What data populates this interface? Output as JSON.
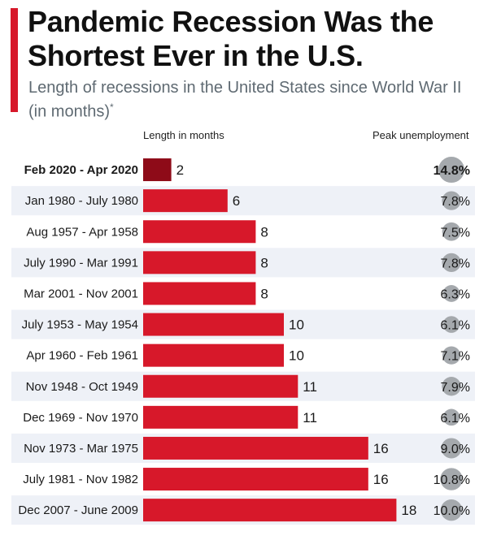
{
  "header": {
    "title": "Pandemic Recession Was the Shortest Ever in the U.S.",
    "subtitle": "Length of recessions in the United States since World War II (in months)",
    "subtitle_mark": "*"
  },
  "columns": {
    "length": "Length in months",
    "unemployment": "Peak unemployment"
  },
  "colors": {
    "accent": "#d7182a",
    "bar": "#d7182a",
    "highlight_bar": "#8e0b18",
    "row_stripe": "#eef1f7",
    "bubble": "#a5a9ad"
  },
  "chart_data": {
    "type": "bar",
    "orientation": "horizontal",
    "categories": [
      "Feb 2020 - Apr 2020",
      "Jan 1980 - July 1980",
      "Aug 1957 - Apr 1958",
      "July 1990 - Mar 1991",
      "Mar 2001 - Nov 2001",
      "July 1953 - May 1954",
      "Apr 1960 - Feb 1961",
      "Nov 1948 - Oct 1949",
      "Dec 1969 - Nov 1970",
      "Nov 1973 - Mar 1975",
      "July 1981 - Nov 1982",
      "Dec 2007 - June 2009"
    ],
    "values": [
      2,
      6,
      8,
      8,
      8,
      10,
      10,
      11,
      11,
      16,
      16,
      18
    ],
    "peak_unemployment": [
      14.8,
      7.8,
      7.5,
      7.8,
      6.3,
      6.1,
      7.1,
      7.9,
      6.1,
      9.0,
      10.8,
      10.0
    ],
    "peak_unemployment_labels": [
      "14.8%",
      "7.8%",
      "7.5%",
      "7.8%",
      "6.3%",
      "6.1%",
      "7.1%",
      "7.9%",
      "6.1%",
      "9.0%",
      "10.8%",
      "10.0%"
    ],
    "highlight_index": 0
  }
}
